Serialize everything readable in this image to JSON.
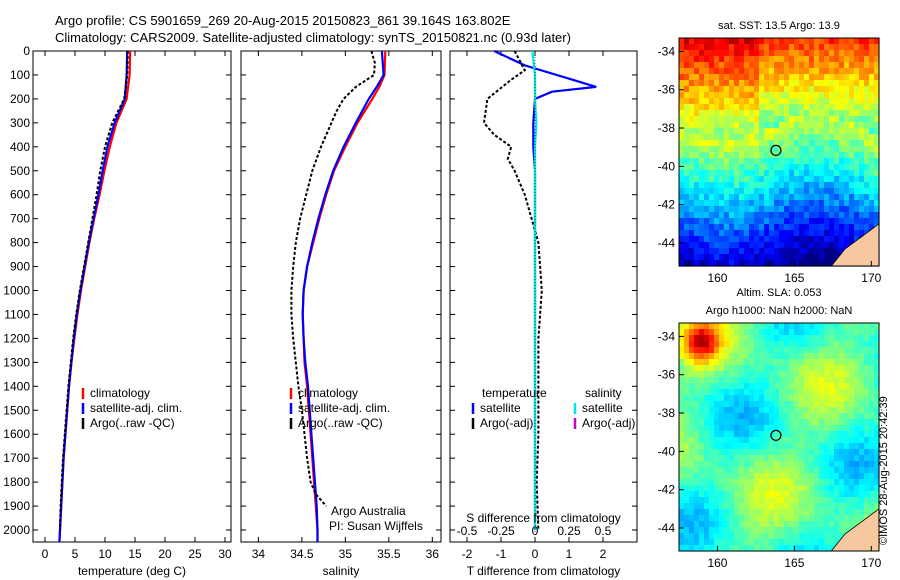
{
  "header": {
    "line1": "Argo profile: CS 5901659_269 20-Aug-2015 20150823_861 39.164S 163.802E",
    "line2": "Climatology: CARS2009. Satellite-adjusted climatology: synTS_20150821.nc (0.93d later)"
  },
  "stamp": "©IMOS 28-Aug-2015 20:42:39",
  "colors": {
    "climatology": "#ff0000",
    "satellite": "#0000ff",
    "argo": "#000000",
    "sat_salinity": "#00e5e5",
    "argo_adj_salinity": "#cc00cc",
    "land": "#f7c8a0"
  },
  "chart_data": [
    {
      "type": "line",
      "xlabel": "temperature (deg C)",
      "ylabel": "",
      "xlim": [
        -2,
        31
      ],
      "ylim": [
        2050,
        0
      ],
      "xticks": [
        "0",
        "5",
        "10",
        "15",
        "20",
        "25",
        "30"
      ],
      "xtick_values": [
        0,
        5,
        10,
        15,
        20,
        25,
        30
      ],
      "yticks": [
        "0",
        "100",
        "200",
        "300",
        "400",
        "500",
        "600",
        "700",
        "800",
        "900",
        "1000",
        "1100",
        "1200",
        "1300",
        "1400",
        "1500",
        "1600",
        "1700",
        "1800",
        "1900",
        "2000"
      ],
      "legend": [
        "climatology",
        "satellite-adj. clim.",
        "Argo(..raw -QC)"
      ],
      "legend_placement": "lower-right",
      "series": [
        {
          "name": "climatology",
          "color": "#ff0000",
          "pressure": [
            0,
            100,
            200,
            300,
            400,
            500,
            600,
            700,
            800,
            900,
            1000,
            1100,
            1200,
            1300,
            1400,
            1500,
            1600,
            1700,
            1800,
            1900,
            2000,
            2050
          ],
          "values": [
            14.2,
            14.1,
            13.6,
            11.9,
            10.8,
            9.9,
            9.1,
            8.2,
            7.4,
            6.7,
            6.0,
            5.4,
            4.9,
            4.4,
            4.0,
            3.7,
            3.4,
            3.1,
            2.9,
            2.7,
            2.5,
            2.4
          ]
        },
        {
          "name": "satellite-adj. clim.",
          "color": "#0000ff",
          "pressure": [
            0,
            100,
            200,
            300,
            400,
            500,
            600,
            700,
            800,
            900,
            1000,
            1100,
            1200,
            1300,
            1400,
            1500,
            1600,
            1700,
            1800,
            1900,
            2000,
            2050
          ],
          "values": [
            13.7,
            13.6,
            13.3,
            11.6,
            10.4,
            9.6,
            8.9,
            8.1,
            7.3,
            6.6,
            5.9,
            5.3,
            4.8,
            4.4,
            4.0,
            3.7,
            3.4,
            3.1,
            2.9,
            2.7,
            2.5,
            2.4
          ]
        },
        {
          "name": "Argo(..raw -QC)",
          "color": "#000000",
          "pressure": [
            0,
            100,
            200,
            300,
            400,
            500,
            600,
            700,
            800,
            900,
            1000,
            1100,
            1200,
            1300,
            1400,
            1500,
            1600,
            1700,
            1800,
            1900,
            2000
          ],
          "values": [
            13.8,
            13.7,
            13.2,
            11.2,
            10.0,
            9.2,
            8.6,
            7.9,
            7.2,
            6.5,
            5.8,
            5.2,
            4.7,
            4.3,
            3.9,
            3.6,
            3.3,
            3.0,
            2.8,
            2.6,
            2.5
          ]
        }
      ]
    },
    {
      "type": "line",
      "xlabel": "salinity",
      "xlim": [
        33.8,
        36.1
      ],
      "ylim": [
        2050,
        0
      ],
      "xticks": [
        "34",
        "34.5",
        "35",
        "35.5",
        "36"
      ],
      "xtick_values": [
        34,
        34.5,
        35,
        35.5,
        36
      ],
      "legend": [
        "climatology",
        "satellite-adj. clim.",
        "Argo(..raw -QC)"
      ],
      "legend_placement": "lower-right",
      "annotation": [
        "Argo Australia",
        "PI: Susan Wijffels"
      ],
      "series": [
        {
          "name": "climatology",
          "color": "#ff0000",
          "pressure": [
            0,
            100,
            150,
            200,
            300,
            400,
            500,
            600,
            700,
            800,
            900,
            1000,
            1100,
            1200,
            1300,
            1400,
            1500,
            1600,
            1700,
            1800,
            1900,
            2000,
            2050
          ],
          "values": [
            35.46,
            35.45,
            35.39,
            35.31,
            35.14,
            35.0,
            34.87,
            34.78,
            34.7,
            34.63,
            34.56,
            34.52,
            34.51,
            34.52,
            34.53,
            34.56,
            34.58,
            34.6,
            34.62,
            34.64,
            34.66,
            34.68,
            34.68
          ]
        },
        {
          "name": "satellite-adj. clim.",
          "color": "#0000ff",
          "pressure": [
            0,
            100,
            150,
            200,
            300,
            400,
            500,
            600,
            700,
            800,
            900,
            1000,
            1100,
            1200,
            1300,
            1400,
            1500,
            1600,
            1700,
            1800,
            1900,
            2000,
            2050
          ],
          "values": [
            35.42,
            35.44,
            35.36,
            35.27,
            35.12,
            34.98,
            34.86,
            34.77,
            34.69,
            34.62,
            34.56,
            34.52,
            34.51,
            34.52,
            34.54,
            34.57,
            34.59,
            34.61,
            34.63,
            34.65,
            34.67,
            34.68,
            34.68
          ]
        },
        {
          "name": "Argo(..raw -QC)",
          "color": "#000000",
          "pressure": [
            0,
            50,
            100,
            150,
            200,
            250,
            300,
            400,
            500,
            600,
            700,
            800,
            900,
            1000,
            1100,
            1200,
            1300,
            1400,
            1500,
            1600,
            1700,
            1800,
            1850,
            1900
          ],
          "values": [
            35.3,
            35.34,
            35.33,
            35.12,
            34.98,
            34.9,
            34.84,
            34.72,
            34.62,
            34.55,
            34.48,
            34.43,
            34.4,
            34.38,
            34.38,
            34.4,
            34.43,
            34.46,
            34.5,
            34.53,
            34.56,
            34.6,
            34.66,
            34.78
          ]
        }
      ]
    },
    {
      "type": "line",
      "xlabel": "T difference from climatology",
      "xlabel_top": "S difference from climatology",
      "xlim": [
        -2.5,
        3
      ],
      "ylim": [
        2050,
        0
      ],
      "xticks": [
        "-2",
        "-1",
        "0",
        "1",
        "2"
      ],
      "xtick_values": [
        -2,
        -1,
        0,
        1,
        2
      ],
      "xticks_top": [
        "-0.5",
        "-0.25",
        "0",
        "0.25",
        "0.5"
      ],
      "xtick_top_values": [
        -0.5,
        -0.25,
        0,
        0.25,
        0.5
      ],
      "legend_temperature": [
        "temperature",
        "satellite",
        "Argo(-adj)"
      ],
      "legend_salinity": [
        "salinity",
        "satellite",
        "Argo(-adj)"
      ],
      "legend_placement": "lower-center",
      "series": [
        {
          "name": "satellite",
          "group": "temperature",
          "color": "#0000ff",
          "pressure": [
            0,
            60,
            120,
            150,
            170,
            200,
            300,
            400,
            500,
            600,
            800,
            1000,
            1200,
            1400,
            1600,
            1800,
            2000
          ],
          "values": [
            -1.2,
            -0.3,
            1.1,
            1.8,
            0.5,
            0.0,
            -0.05,
            -0.05,
            0.0,
            0.0,
            0.0,
            0.0,
            0.0,
            0.0,
            0.0,
            0.0,
            0.0
          ]
        },
        {
          "name": "Argo(-adj)",
          "group": "temperature",
          "color": "#000000",
          "pressure": [
            0,
            80,
            120,
            200,
            300,
            350,
            400,
            450,
            500,
            600,
            800,
            1000,
            1200,
            1400,
            1600,
            1800,
            2000
          ],
          "values": [
            -0.6,
            -0.3,
            -0.7,
            -1.4,
            -1.5,
            -1.2,
            -0.7,
            -0.8,
            -0.6,
            -0.3,
            0.1,
            0.2,
            0.1,
            0.1,
            0.1,
            0.05,
            0.1
          ]
        },
        {
          "name": "satellite",
          "group": "salinity",
          "color": "#00e5e5",
          "pressure": [
            0,
            100,
            200,
            300,
            400,
            500,
            600,
            800,
            1000,
            1200,
            1400,
            1600,
            1800,
            1900,
            2000
          ],
          "values": [
            -0.02,
            0.0,
            0.0,
            0.01,
            0.0,
            0.0,
            0.0,
            0.0,
            0.0,
            0.0,
            0.0,
            0.0,
            0.0,
            0.0,
            0.0
          ]
        },
        {
          "name": "Argo(-adj)",
          "group": "salinity",
          "color": "#cc00cc",
          "pressure": [],
          "values": []
        }
      ]
    },
    {
      "type": "heatmap",
      "title": "sat. SST: 13.5 Argo: 13.9",
      "xlim": [
        157.5,
        170.5
      ],
      "ylim": [
        -45.2,
        -33.3
      ],
      "xticks": [
        "160",
        "165",
        "170"
      ],
      "xtick_values": [
        160,
        165,
        170
      ],
      "yticks": [
        "-34",
        "-36",
        "-38",
        "-40",
        "-42",
        "-44"
      ],
      "ytick_values": [
        -34,
        -36,
        -38,
        -40,
        -42,
        -44
      ],
      "marker": {
        "lon": 163.802,
        "lat": -39.164
      },
      "colormap": "jet",
      "value_range": [
        10,
        20
      ]
    },
    {
      "type": "heatmap",
      "title": "Altim. SLA: 0.053",
      "subtitle": "Argo h1000: NaN h2000: NaN",
      "xlim": [
        157.5,
        170.5
      ],
      "ylim": [
        -45.2,
        -33.3
      ],
      "xticks": [
        "160",
        "165",
        "170"
      ],
      "xtick_values": [
        160,
        165,
        170
      ],
      "yticks": [
        "-34",
        "-36",
        "-38",
        "-40",
        "-42",
        "-44"
      ],
      "ytick_values": [
        -34,
        -36,
        -38,
        -40,
        -42,
        -44
      ],
      "marker": {
        "lon": 163.802,
        "lat": -39.164
      },
      "colormap": "jet",
      "value_range": [
        -0.5,
        0.5
      ]
    }
  ]
}
